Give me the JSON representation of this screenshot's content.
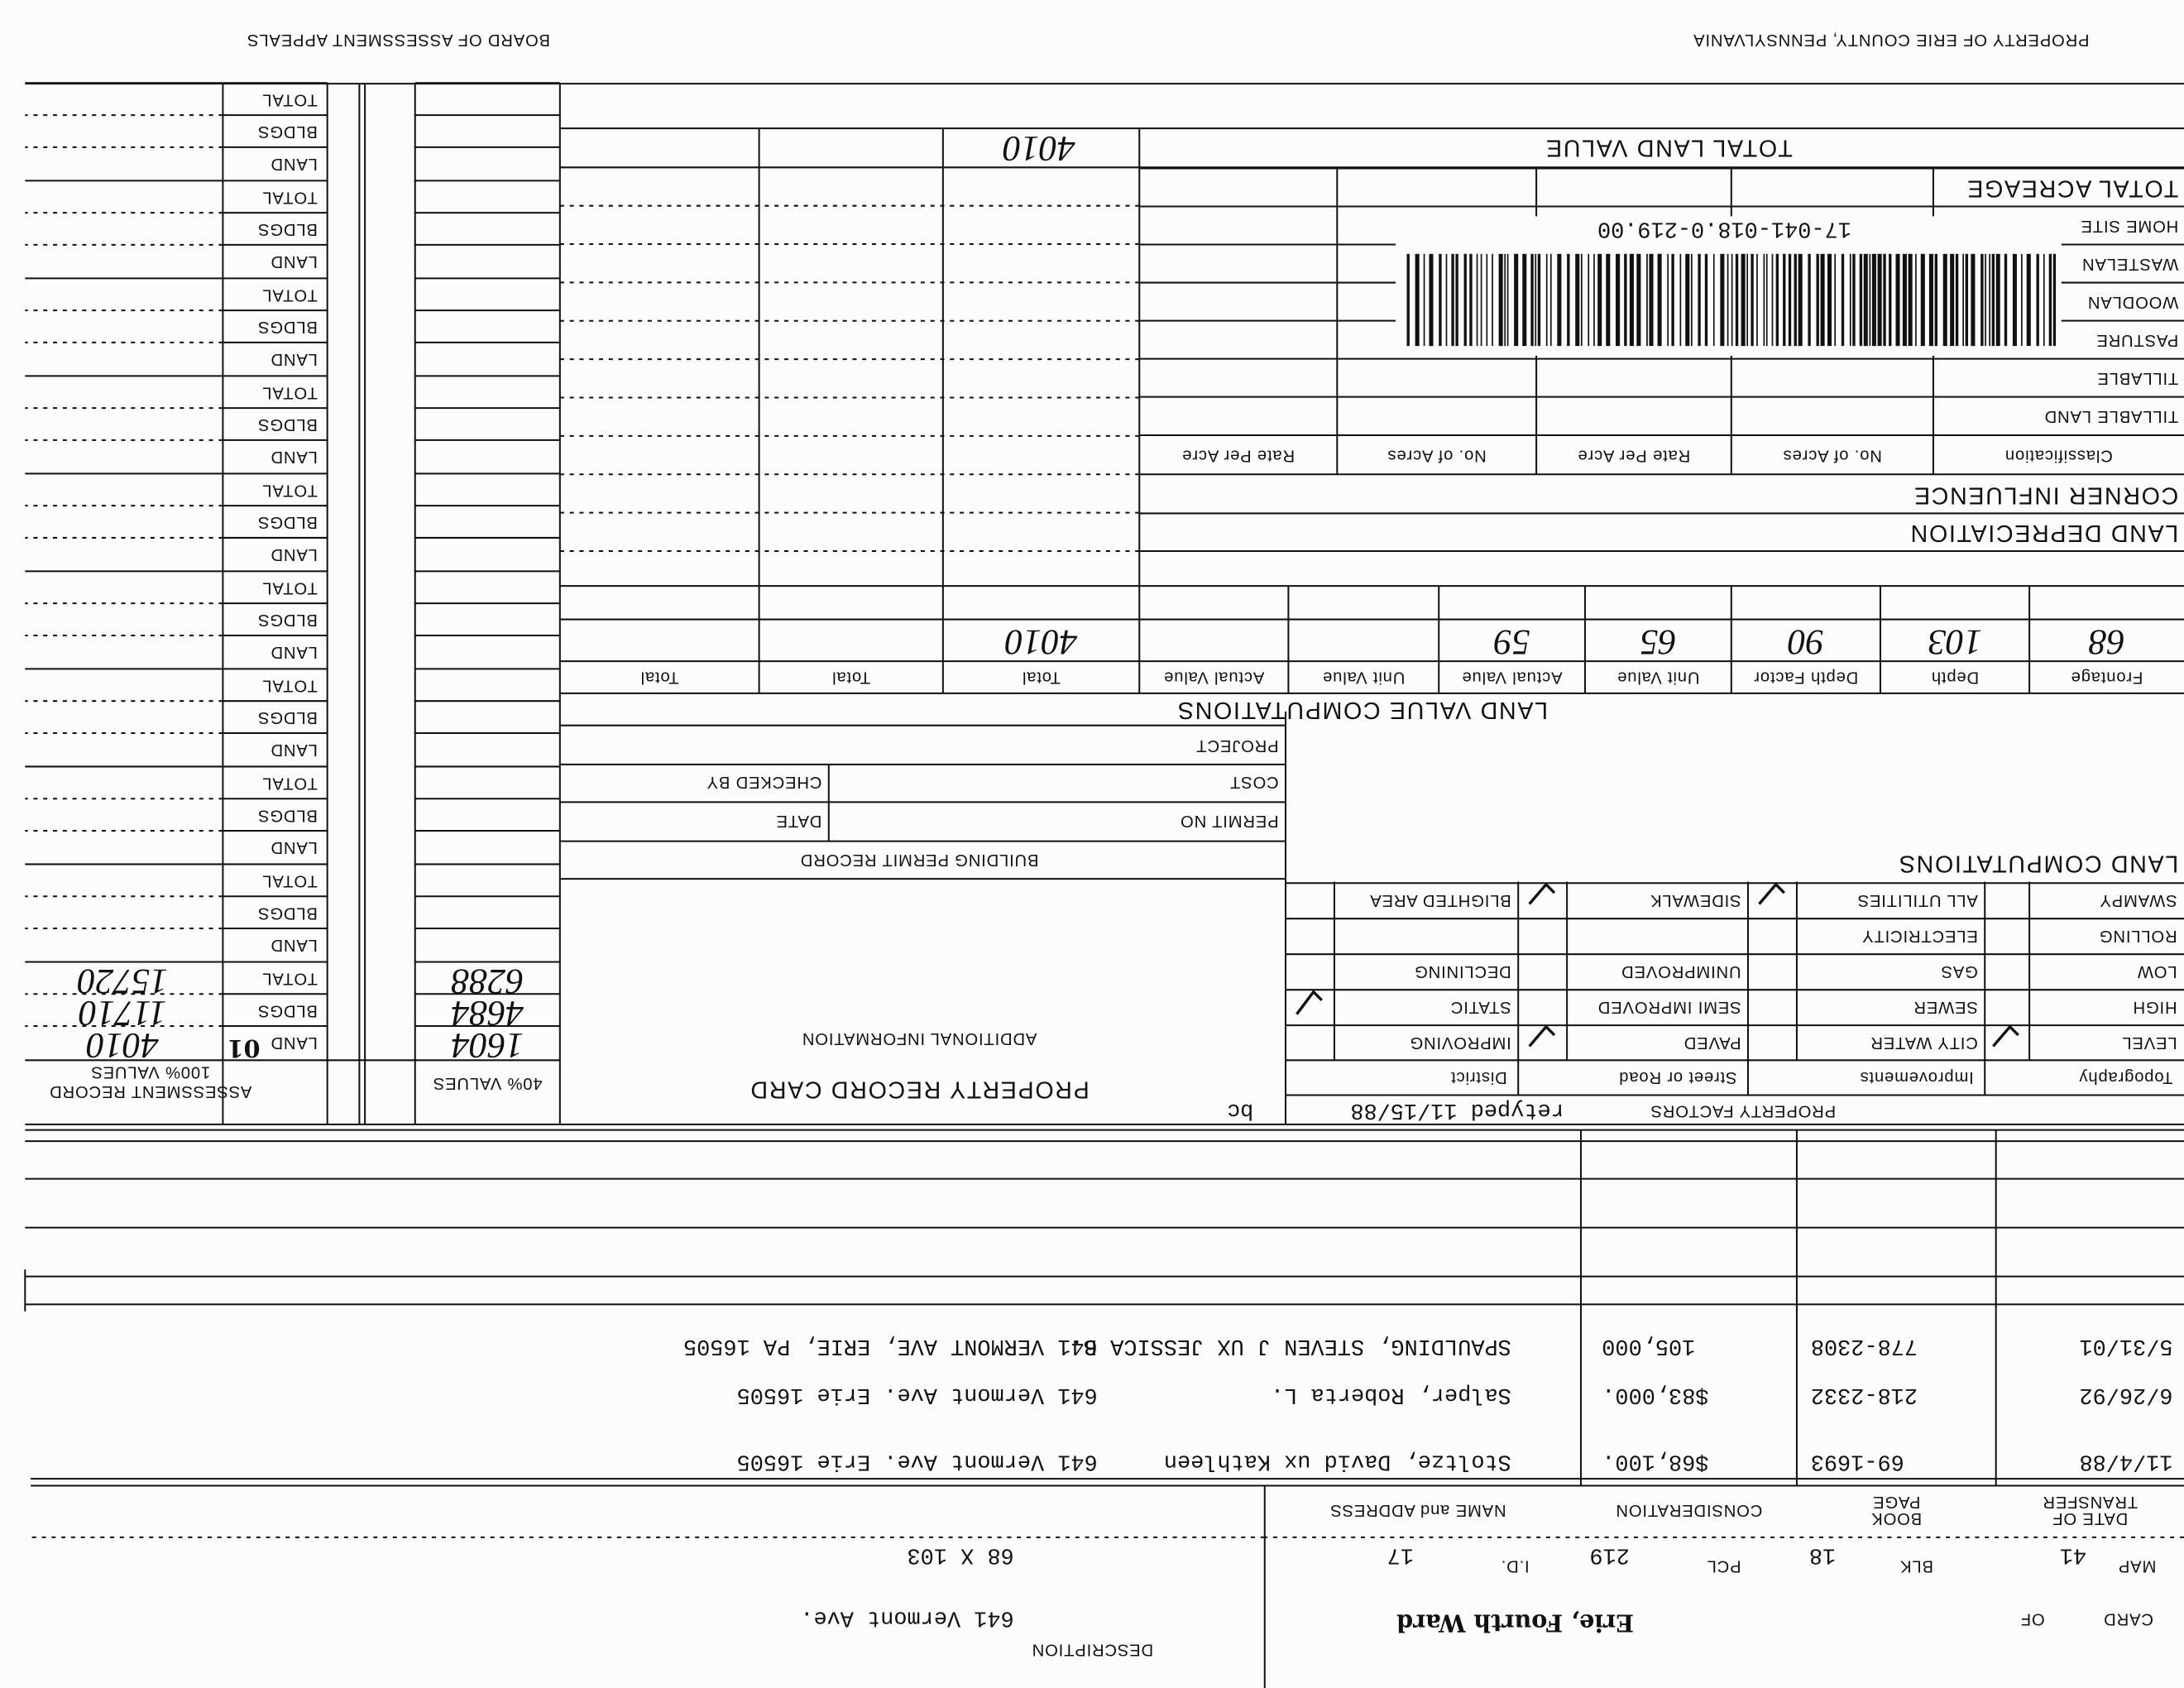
{
  "header": {
    "card_label": "CARD",
    "of_label": "OF",
    "ward": "Erie, Fourth Ward",
    "description_label": "DESCRIPTION",
    "description": "641 Vermont Ave.",
    "map_label": "MAP",
    "map": "41",
    "blk_label": "BLK",
    "blk": "18",
    "pcl_label": "PCL",
    "pcl": "219",
    "id_label": "I.D.",
    "id": "17",
    "dimensions": "68 X 103"
  },
  "transfers": {
    "headers": [
      [
        "DATE OF",
        "TRANSFER"
      ],
      [
        "BOOK",
        "PAGE"
      ],
      [
        "CONSIDERATION"
      ],
      [
        "NAME and ADDRESS"
      ]
    ],
    "rows": [
      [
        "11/4/88",
        "69-1693",
        "$68,100.",
        "Stoltze, David ux Kathleen",
        "641 Vermont Ave.   Erie  16505"
      ],
      [
        "6/26/92",
        "218-2332",
        "$83,000.",
        "Salper, Roberta L.",
        "641 Vermont Ave.  Erie 16505"
      ],
      [
        "5/31/01",
        "778-2308",
        "105,000",
        "SPAULDING, STEVEN J UX JESSICA B.",
        "641 VERMONT AVE, ERIE, PA 16505"
      ]
    ]
  },
  "property_factors": {
    "title": "PROPERTY FACTORS",
    "retyped": "retyped 11/15/88",
    "initials": "bc",
    "headers": [
      "Topography",
      "Improvements",
      "Street or Road",
      "District"
    ],
    "rows": [
      [
        "LEVEL",
        "CITY WATER",
        "PAVED",
        "IMPROVING"
      ],
      [
        "HIGH",
        "SEWER",
        "SEMI IMPROVED",
        "STATIC"
      ],
      [
        "LOW",
        "GAS",
        "UNIMPROVED",
        "DECLINING"
      ],
      [
        "ROLLING",
        "ELECTRICITY"
      ],
      [
        "SWAMPY",
        "ALL UTILITIES",
        "SIDEWALK",
        "BLIGHTED AREA"
      ]
    ]
  },
  "record_title": "PROPERTY RECORD CARD",
  "additional_information": "ADDITIONAL INFORMATION",
  "land_computations": "LAND COMPUTATIONS",
  "building_permit": {
    "title": "BUILDING PERMIT RECORD",
    "permit_no": "PERMIT NO",
    "date": "DATE",
    "cost": "COST",
    "checked_by": "CHECKED BY",
    "project": "PROJECT"
  },
  "land_value": {
    "title": "LAND VALUE COMPUTATIONS",
    "headers": [
      "Frontage",
      "Depth",
      "Depth Factor",
      "Unit Value",
      "Actual Value",
      "Unit Value",
      "Actual Value",
      "Total",
      "Total",
      "Total"
    ],
    "entry": {
      "frontage": "68",
      "depth": "103",
      "depth_factor": "90",
      "unit_value": "65",
      "actual_value": "59",
      "total": "4010"
    }
  },
  "land_depreciation": "LAND DEPRECIATION",
  "corner_influence": "CORNER INFLUENCE",
  "acreage": {
    "headers": [
      "Classification",
      "No. of Acres",
      "Rate Per Acre",
      "No. of Acres",
      "Rate Per Acre"
    ],
    "rows": [
      "TILLABLE LAND",
      "TILLABLE",
      "PASTURE",
      "WOODLAN",
      "WASTELAN",
      "HOME SITE",
      "TOTAL ACREAGE"
    ],
    "barcode": "17-041-018.0-219.00"
  },
  "total_land_value": {
    "label": "TOTAL LAND VALUE",
    "value": "4010"
  },
  "assessment": {
    "values40_label": "40% VALUES",
    "title": "ASSESSMENT RECORD",
    "values100_label": "100% VALUES",
    "row_labels": [
      "LAND",
      "BLDGS",
      "TOTAL"
    ],
    "year": "01",
    "values40": [
      "1604",
      "4684",
      "6288"
    ],
    "values100": [
      "4010",
      "11710",
      "15720"
    ]
  },
  "footer": {
    "owner": "PROPERTY OF ERIE COUNTY, PENNSYLVANIA",
    "board": "BOARD OF ASSESSMENT APPEALS"
  }
}
